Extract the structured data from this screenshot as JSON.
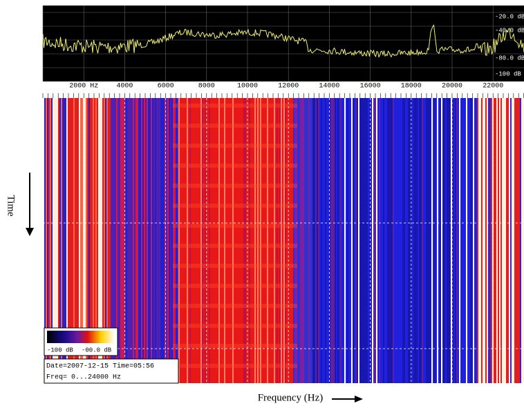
{
  "spectrum": {
    "db_labels": [
      "-20.0 dB",
      "-40.0 dB",
      "-80.0 dB",
      "-100 dB"
    ]
  },
  "frequency_axis": {
    "labels": [
      "2000 Hz",
      "4000",
      "6000",
      "8000",
      "10000",
      "12000",
      "14000",
      "16000",
      "18000",
      "20000",
      "22000"
    ]
  },
  "axis_titles": {
    "time": "Time",
    "frequency": "Frequency (Hz)"
  },
  "colorbar": {
    "low": "-100 dB",
    "high": "-00.0 dB"
  },
  "info": {
    "date_line": "Date=2007-12-15 Time=05:56",
    "freq_line": "Freq= 0...24000 Hz"
  }
}
